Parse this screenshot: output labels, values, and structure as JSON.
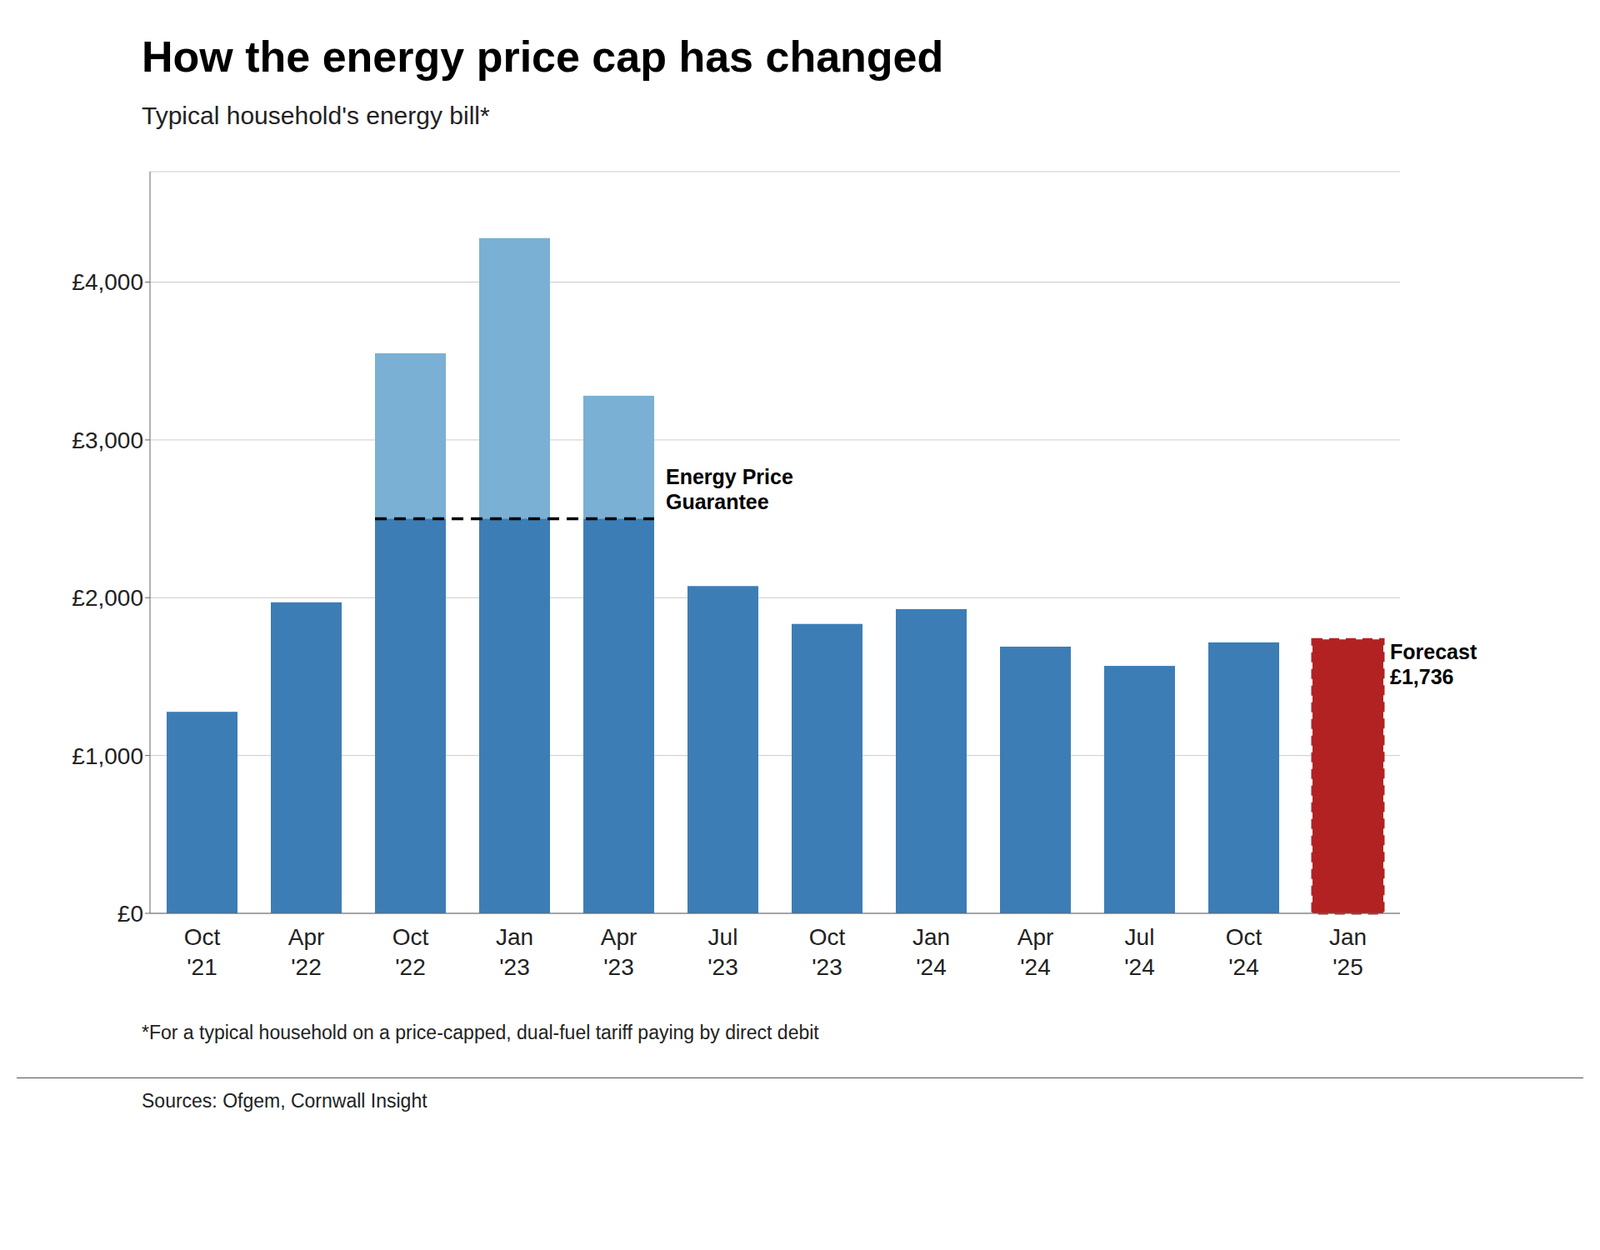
{
  "chart_data": {
    "type": "bar",
    "title": "How the energy price cap has changed",
    "subtitle": "Typical household's energy bill*",
    "footnote": "*For a typical household on a price-capped, dual-fuel tariff paying by direct debit",
    "source": "Sources: Ofgem, Cornwall Insight",
    "categories": [
      "Oct\n'21",
      "Apr\n'22",
      "Oct\n'22",
      "Jan\n'23",
      "Apr\n'23",
      "Jul\n'23",
      "Oct\n'23",
      "Jan\n'24",
      "Apr\n'24",
      "Jul\n'24",
      "Oct\n'24",
      "Jan\n'25"
    ],
    "values": [
      1277,
      1971,
      3549,
      4279,
      3280,
      2074,
      1834,
      1928,
      1690,
      1568,
      1717,
      1736
    ],
    "colors": [
      "#3d7db5",
      "#3d7db5",
      "#7ab0d4",
      "#7ab0d4",
      "#7ab0d4",
      "#3d7db5",
      "#3d7db5",
      "#3d7db5",
      "#3d7db5",
      "#3d7db5",
      "#3d7db5",
      "#b22222"
    ],
    "ylim": [
      0,
      4700
    ],
    "yticks": [
      {
        "value": 0,
        "label": "£0"
      },
      {
        "value": 1000,
        "label": "£1,000"
      },
      {
        "value": 2000,
        "label": "£2,000"
      },
      {
        "value": 3000,
        "label": "£3,000"
      },
      {
        "value": 4000,
        "label": "£4,000"
      }
    ],
    "grid": true,
    "annotations": [
      {
        "text": "Energy Price\nGuarantee",
        "y": 2500,
        "x": [
          "Oct\n'22",
          "Apr\n'23"
        ],
        "color": "#3d7db5"
      },
      {
        "text": "Forecast\n£1,736",
        "x": "Jan\n'25"
      }
    ]
  }
}
